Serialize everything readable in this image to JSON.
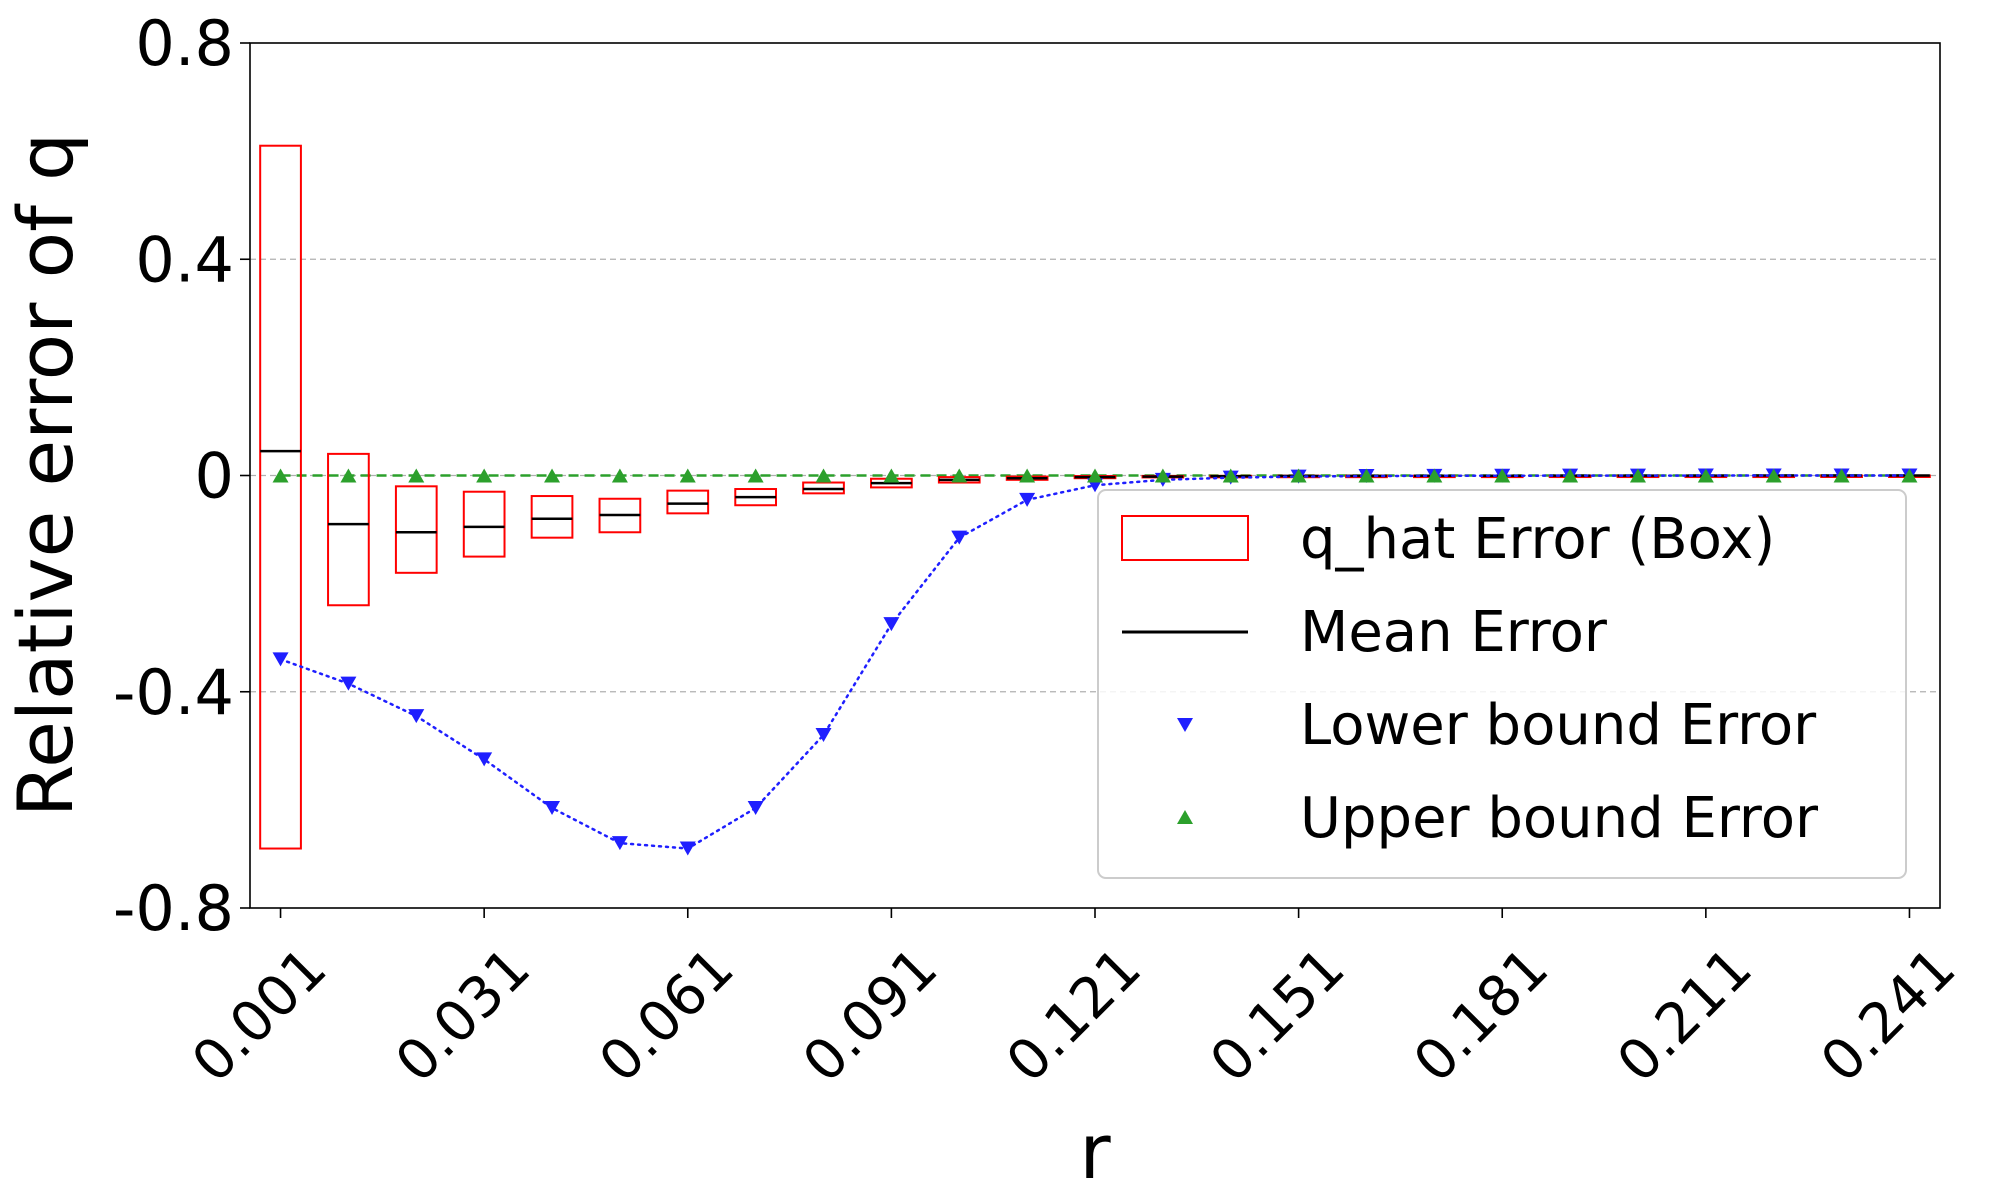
{
  "chart_data": {
    "type": "box",
    "xlabel": "r",
    "ylabel": "Relative error of q",
    "ylim": [
      -0.8,
      0.8
    ],
    "xlim": [
      -0.0035,
      0.2455
    ],
    "yticks": [
      0.8,
      0.4,
      0,
      -0.4,
      -0.8
    ],
    "ytick_labels": [
      "0.8",
      "0.4",
      "0",
      "-0.4",
      "-0.8"
    ],
    "xticks": [
      0.001,
      0.031,
      0.061,
      0.091,
      0.121,
      0.151,
      0.181,
      0.211,
      0.241
    ],
    "xtick_labels": [
      "0.001",
      "0.031",
      "0.061",
      "0.091",
      "0.121",
      "0.151",
      "0.181",
      "0.211",
      "0.241"
    ],
    "grid": "y-dashed",
    "legend_position": "lower-right",
    "x": [
      0.001,
      0.011,
      0.021,
      0.031,
      0.041,
      0.051,
      0.061,
      0.071,
      0.081,
      0.091,
      0.101,
      0.111,
      0.121,
      0.131,
      0.141,
      0.151,
      0.161,
      0.171,
      0.181,
      0.191,
      0.201,
      0.211,
      0.221,
      0.231,
      0.241
    ],
    "series": [
      {
        "name": "q_hat Error (Box)",
        "kind": "box",
        "color": "#ff0000",
        "low": [
          -0.69,
          -0.24,
          -0.18,
          -0.15,
          -0.115,
          -0.105,
          -0.07,
          -0.055,
          -0.033,
          -0.022,
          -0.013,
          -0.008,
          -0.005,
          -0.003,
          -0.002,
          -0.0015,
          -0.001,
          -0.0008,
          -0.0006,
          -0.0005,
          -0.0004,
          -0.0003,
          -0.0002,
          -0.0002,
          -0.0001
        ],
        "high": [
          0.61,
          0.04,
          -0.02,
          -0.03,
          -0.038,
          -0.043,
          -0.028,
          -0.025,
          -0.013,
          -0.006,
          -0.003,
          -0.002,
          -0.001,
          -0.0008,
          -0.0006,
          -0.0004,
          -0.0003,
          -0.0002,
          -0.0002,
          -0.0001,
          -0.0001,
          -0.0001,
          -0.0001,
          0.0,
          0.0
        ]
      },
      {
        "name": "Mean Error",
        "kind": "mean",
        "color": "#000000",
        "values": [
          0.045,
          -0.09,
          -0.105,
          -0.095,
          -0.08,
          -0.073,
          -0.052,
          -0.04,
          -0.025,
          -0.014,
          -0.008,
          -0.005,
          -0.003,
          -0.002,
          -0.0013,
          -0.001,
          -0.0007,
          -0.0005,
          -0.0004,
          -0.0003,
          -0.0002,
          -0.0002,
          -0.0001,
          -0.0001,
          -0.0001
        ]
      },
      {
        "name": "Lower bound Error",
        "kind": "marker",
        "marker": "triangle-down",
        "line": "dotted",
        "color": "#1f1fff",
        "values": [
          -0.34,
          -0.385,
          -0.445,
          -0.525,
          -0.615,
          -0.68,
          -0.69,
          -0.615,
          -0.48,
          -0.275,
          -0.115,
          -0.045,
          -0.018,
          -0.008,
          -0.004,
          -0.002,
          -0.001,
          -0.0006,
          -0.0004,
          -0.0003,
          -0.0002,
          -0.0001,
          -0.0001,
          0.0,
          0.0
        ]
      },
      {
        "name": "Upper bound Error",
        "kind": "marker",
        "marker": "triangle-up",
        "line": "dashed",
        "color": "#2ca02c",
        "values": [
          0,
          0,
          0,
          0,
          0,
          0,
          0,
          0,
          0,
          0,
          0,
          0,
          0,
          0,
          0,
          0,
          0,
          0,
          0,
          0,
          0,
          0,
          0,
          0,
          0
        ]
      }
    ]
  }
}
